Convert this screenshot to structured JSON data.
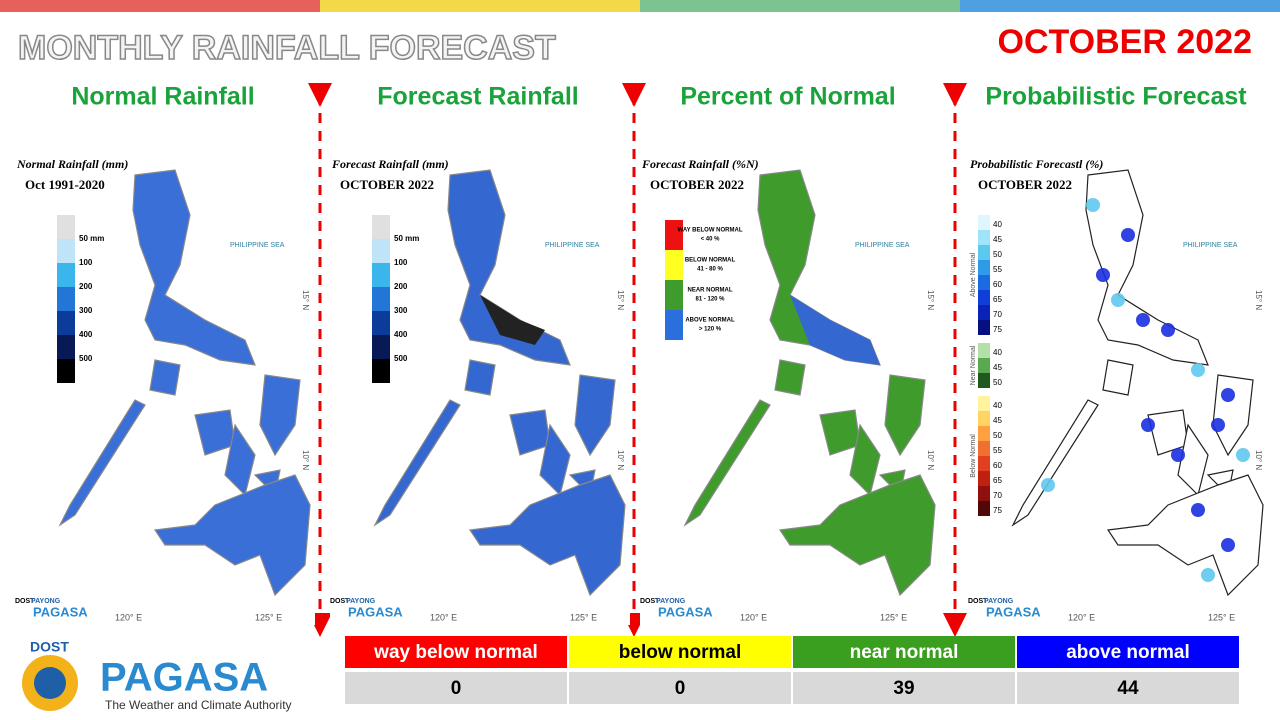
{
  "header": {
    "title": "MONTHLY RAINFALL FORECAST",
    "month": "OCTOBER 2022"
  },
  "panels": [
    {
      "title": "Normal Rainfall",
      "map_title": "Normal Rainfall (mm)",
      "map_subtitle": "Oct 1991-2020",
      "legend_labels": [
        "50 mm",
        "100",
        "200",
        "300",
        "400",
        "500"
      ]
    },
    {
      "title": "Forecast Rainfall",
      "map_title": "Forecast Rainfall (mm)",
      "map_subtitle": "OCTOBER 2022",
      "legend_labels": [
        "50 mm",
        "100",
        "200",
        "300",
        "400",
        "500"
      ]
    },
    {
      "title": "Percent of Normal",
      "map_title": "Forecast Rainfall (%N)",
      "map_subtitle": "OCTOBER 2022",
      "legend_items": [
        {
          "label": "WAY BELOW NORMAL",
          "range": "< 40 %"
        },
        {
          "label": "BELOW NORMAL",
          "range": "41 - 80 %"
        },
        {
          "label": "NEAR NORMAL",
          "range": "81 - 120 %"
        },
        {
          "label": "ABOVE NORMAL",
          "range": "> 120 %"
        }
      ]
    },
    {
      "title": "Probabilistic Forecast",
      "map_title": "Probabilistic Forecastl (%)",
      "map_subtitle": "OCTOBER 2022",
      "legend_groups": [
        {
          "name": "Above Normal",
          "ticks": [
            "40",
            "45",
            "50",
            "55",
            "60",
            "65",
            "70",
            "75"
          ]
        },
        {
          "name": "Near Normal",
          "ticks": [
            "40",
            "45",
            "50"
          ]
        },
        {
          "name": "Below Normal",
          "ticks": [
            "40",
            "45",
            "50",
            "55",
            "60",
            "65",
            "70",
            "75"
          ]
        }
      ]
    }
  ],
  "map_labels": {
    "sea": "PHILIPPINE SEA",
    "lon": [
      "120° E",
      "125° E"
    ],
    "lat": [
      "15° N",
      "10° N"
    ]
  },
  "small_logo": {
    "agency": "DOST",
    "program": "PAYONG",
    "name": "PAGASA"
  },
  "logo": {
    "agency": "DOST",
    "name": "PAGASA",
    "tagline": "The Weather and Climate Authority"
  },
  "table": {
    "header": [
      "way below normal",
      "below normal",
      "near normal",
      "above normal"
    ],
    "rows": [
      [
        "0",
        "0",
        "39",
        "44"
      ]
    ]
  }
}
